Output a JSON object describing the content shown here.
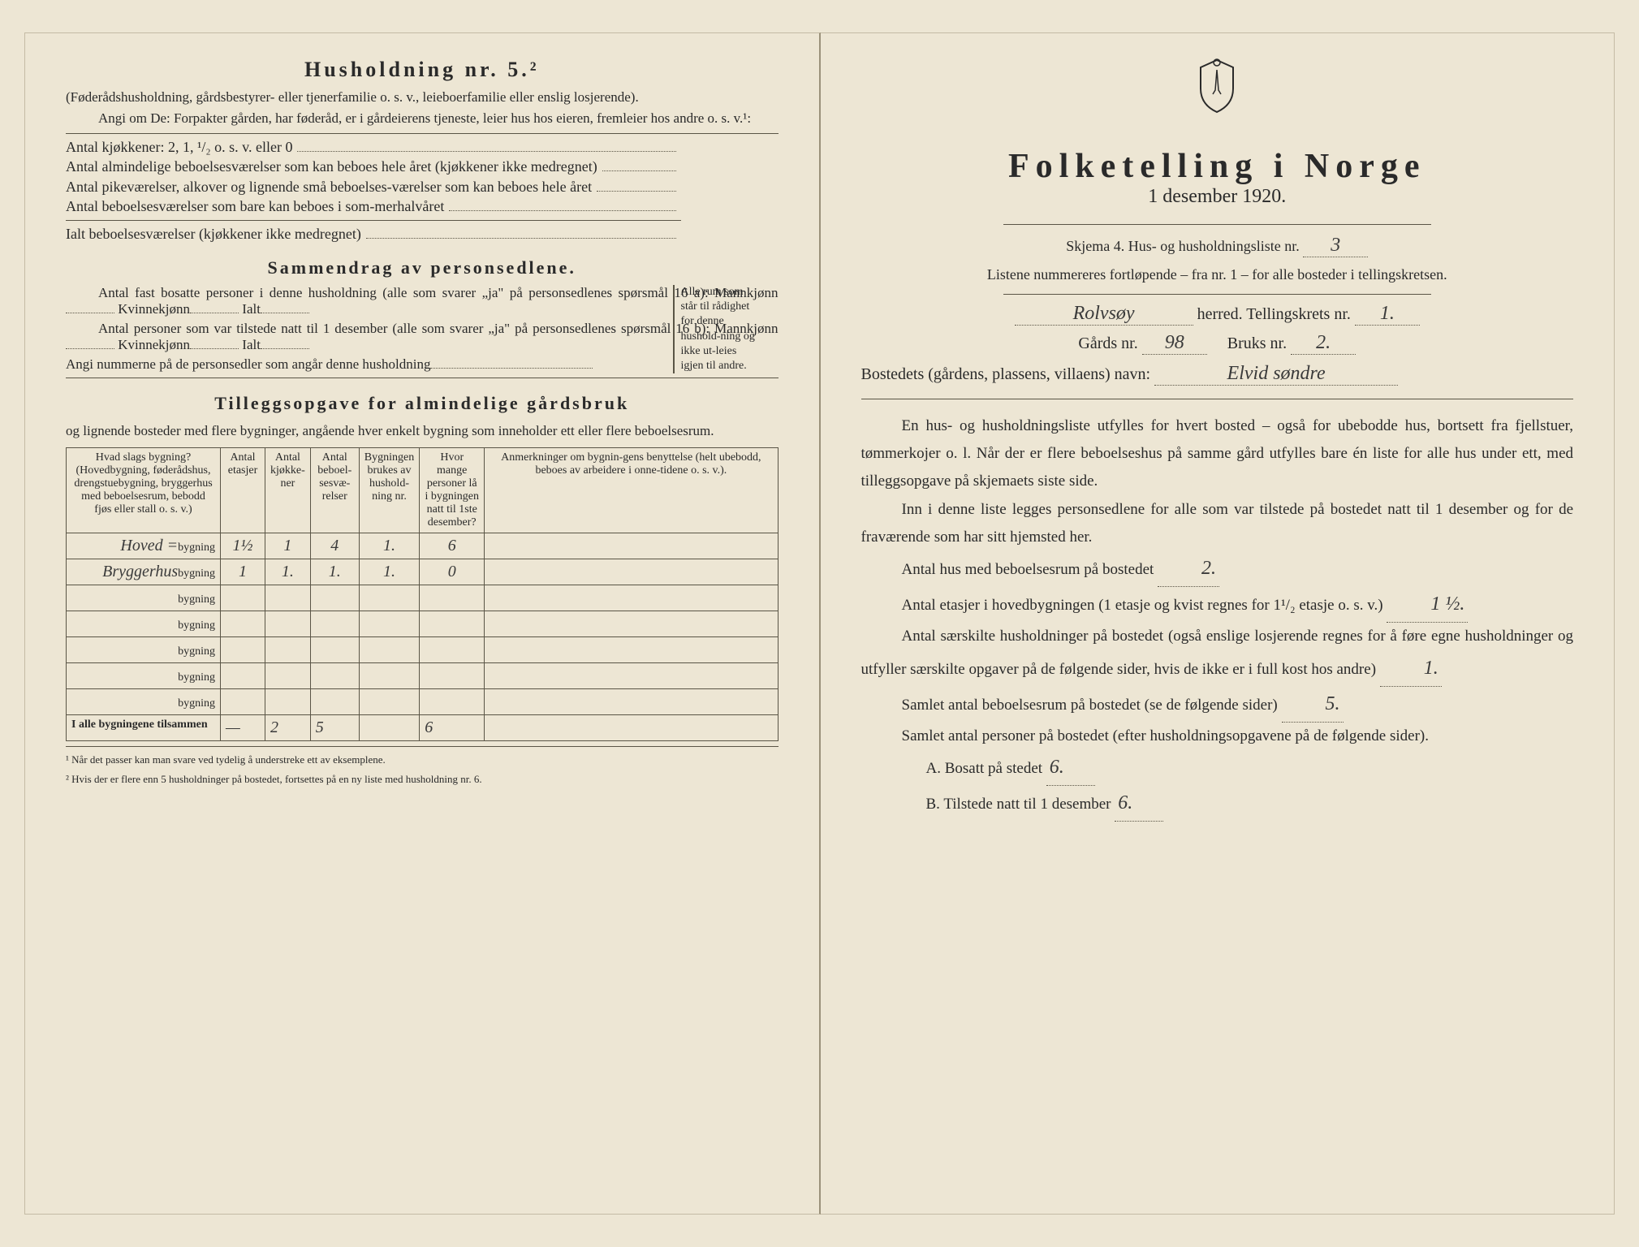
{
  "left": {
    "heading": "Husholdning nr. 5.²",
    "intro1": "(Føderådshusholdning, gårdsbestyrer- eller tjenerfamilie o. s. v., leieboerfamilie eller enslig losjerende).",
    "intro2": "Angi om De: Forpakter gården, har føderåd, er i gårdeierens tjeneste, leier hus hos eieren, fremleier hos andre o. s. v.¹:",
    "room_lines": [
      "Antal kjøkkener: 2, 1, ¹/₂ o. s. v. eller 0",
      "Antal almindelige beboelsesværelser som kan beboes hele året (kjøkkener ikke medregnet)",
      "Antal pikeværelser, alkover og lignende små beboelses-værelser som kan beboes hele året",
      "Antal beboelsesværelser som bare kan beboes i som-merhalvåret",
      "Ialt beboelsesværelser (kjøkkener ikke medregnet)"
    ],
    "bracket_note": "Alle rum som står til rådighet for denne hushold-ning og ikke ut-leies igjen til andre.",
    "summary_heading": "Sammendrag av personsedlene.",
    "summary1_pre": "Antal fast bosatte personer i denne husholdning (alle som svarer „ja\" på personsedlenes spørsmål 16 a): Mannkjønn",
    "summary_kvinne": "Kvinnekjønn",
    "summary_ialt": "Ialt",
    "summary2_pre": "Antal personer som var tilstede natt til 1 desember (alle som svarer „ja\" på personsedlenes spørsmål 16 b): Mannkjønn",
    "summary3": "Angi nummerne på de personsedler som angår denne husholdning",
    "tillegg_heading": "Tilleggsopgave for almindelige gårdsbruk",
    "tillegg_sub": "og lignende bosteder med flere bygninger, angående hver enkelt bygning som inneholder ett eller flere beboelsesrum.",
    "table": {
      "headers": [
        "Hvad slags bygning?\n(Hovedbygning, føderådshus, drengstuebygning, bryggerhus med beboelsesrum, bebodd fjøs eller stall o. s. v.)",
        "Antal etasjer",
        "Antal kjøkke-ner",
        "Antal beboel-sesvæ-relser",
        "Bygningen brukes av hushold-ning nr.",
        "Hvor mange personer lå i bygningen natt til 1ste desember?",
        "Anmerkninger om bygnin-gens benyttelse (helt ubebodd, beboes av arbeidere i onne-tidene o. s. v.)."
      ],
      "rows": [
        {
          "name": "Hoved =",
          "suffix": "bygning",
          "cells": [
            "1½",
            "1",
            "4",
            "1.",
            "6",
            ""
          ]
        },
        {
          "name": "Bryggerhus",
          "suffix": "bygning",
          "cells": [
            "1",
            "1.",
            "1.",
            "1.",
            "0",
            ""
          ]
        },
        {
          "name": "",
          "suffix": "bygning",
          "cells": [
            "",
            "",
            "",
            "",
            "",
            ""
          ]
        },
        {
          "name": "",
          "suffix": "bygning",
          "cells": [
            "",
            "",
            "",
            "",
            "",
            ""
          ]
        },
        {
          "name": "",
          "suffix": "bygning",
          "cells": [
            "",
            "",
            "",
            "",
            "",
            ""
          ]
        },
        {
          "name": "",
          "suffix": "bygning",
          "cells": [
            "",
            "",
            "",
            "",
            "",
            ""
          ]
        },
        {
          "name": "",
          "suffix": "bygning",
          "cells": [
            "",
            "",
            "",
            "",
            "",
            ""
          ]
        }
      ],
      "total_label": "I alle bygningene tilsammen",
      "total_cells": [
        "—",
        "2",
        "5",
        "",
        "6",
        ""
      ]
    },
    "footnote1": "¹ Når det passer kan man svare ved tydelig å understreke ett av eksemplene.",
    "footnote2": "² Hvis der er flere enn 5 husholdninger på bostedet, fortsettes på en ny liste med husholdning nr. 6."
  },
  "right": {
    "title": "Folketelling i Norge",
    "date": "1 desember 1920.",
    "skjema_pre": "Skjema 4.  Hus- og husholdningsliste nr.",
    "skjema_nr": "3",
    "listene": "Listene nummereres fortløpende – fra nr. 1 – for alle bosteder i tellingskretsen.",
    "herred_value": "Rolvsøy",
    "herred_label": "herred.   Tellingskrets nr.",
    "krets_nr": "1.",
    "gards_label": "Gårds nr.",
    "gards_nr": "98",
    "bruks_label": "Bruks nr.",
    "bruks_nr": "2.",
    "bosted_label": "Bostedets (gårdens, plassens, villaens) navn:",
    "bosted_value": "Elvid søndre",
    "para1": "En hus- og husholdningsliste utfylles for hvert bosted – også for ubebodde hus, bortsett fra fjellstuer, tømmerkojer o. l.  Når der er flere beboelseshus på samme gård utfylles bare én liste for alle hus under ett, med tilleggsopgave på skjemaets siste side.",
    "para2": "Inn i denne liste legges personsedlene for alle som var tilstede på bostedet natt til 1 desember og for de fraværende som har sitt hjemsted her.",
    "q1_label": "Antal hus med beboelsesrum på bostedet",
    "q1_value": "2.",
    "q2_label_a": "Antal etasjer i hovedbygningen (1 etasje og kvist regnes for 1¹/₂ etasje o. s. v.)",
    "q2_value": "1 ½.",
    "q3_label": "Antal særskilte husholdninger på bostedet (også enslige losjerende regnes for å føre egne husholdninger og utfyller særskilte opgaver på de følgende sider, hvis de ikke er i full kost hos andre)",
    "q3_value": "1.",
    "q4_label": "Samlet antal beboelsesrum på bostedet (se de følgende sider)",
    "q4_value": "5.",
    "q5_label": "Samlet antal personer på bostedet (efter husholdningsopgavene på de følgende sider).",
    "q5a_label": "A.  Bosatt på stedet",
    "q5a_value": "6.",
    "q5b_label": "B.  Tilstede natt til 1 desember",
    "q5b_value": "6."
  },
  "colors": {
    "paper": "#ede6d4",
    "ink": "#2a2a2a",
    "line": "#5a5546",
    "hand": "#3a3a3a"
  }
}
